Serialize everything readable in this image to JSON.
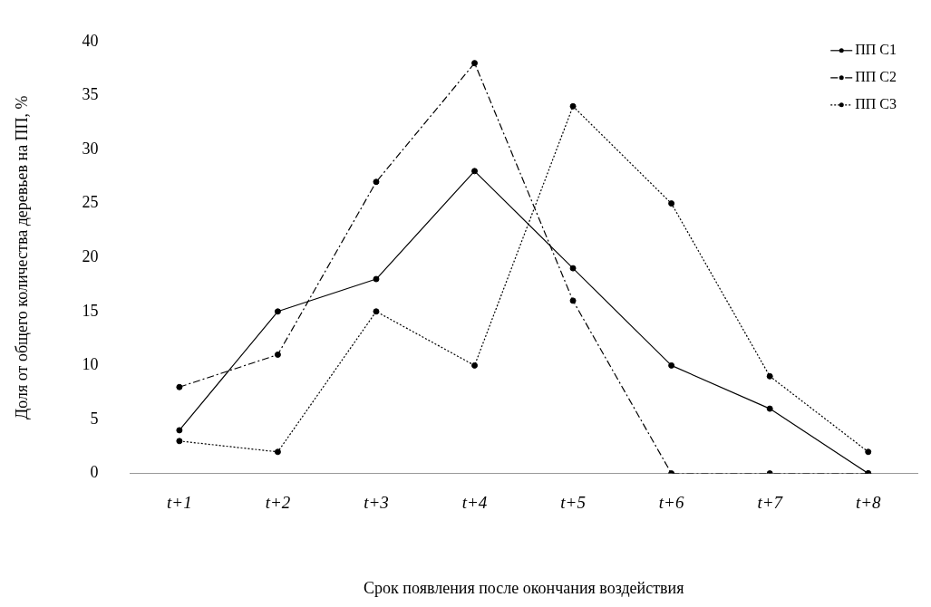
{
  "chart_data": {
    "type": "line",
    "xlabel": "Срок появления после окончания воздействия",
    "ylabel": "Доля от общего количества деревьев на ПП, %",
    "categories": [
      "t+1",
      "t+2",
      "t+3",
      "t+4",
      "t+5",
      "t+6",
      "t+7",
      "t+8"
    ],
    "series": [
      {
        "name": "ПП С1",
        "color": "#000000",
        "line_style": "solid",
        "values": [
          4,
          15,
          18,
          28,
          19,
          10,
          6,
          0
        ]
      },
      {
        "name": "ПП С2",
        "color": "#000000",
        "line_style": "dashed",
        "values": [
          8,
          11,
          27,
          38,
          16,
          0,
          0,
          0
        ]
      },
      {
        "name": "ПП С3",
        "color": "#000000",
        "line_style": "dotted",
        "values": [
          3,
          2,
          15,
          10,
          34,
          25,
          9,
          2
        ]
      }
    ],
    "ylim": [
      0,
      40
    ],
    "yticks": [
      0,
      5,
      10,
      15,
      20,
      25,
      30,
      35,
      40
    ],
    "grid": false,
    "legend": "top right",
    "marker": "circle"
  }
}
